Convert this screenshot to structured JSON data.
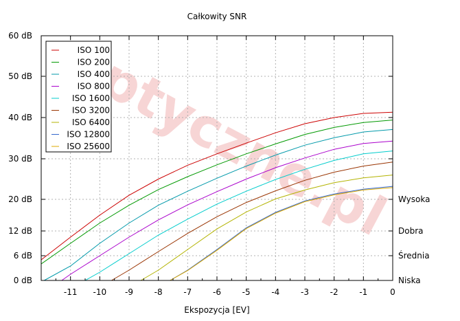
{
  "chart_data": {
    "type": "line",
    "title": "Całkowity SNR",
    "xlabel": "Ekspozycja [EV]",
    "ylabel": "",
    "xlim": [
      -12,
      0
    ],
    "ylim": [
      0,
      60
    ],
    "y_scale": "custom-nonlinear",
    "grid": true,
    "legend_position": "top-left",
    "watermark": "optyczne.pl",
    "x_ticks": [
      -11,
      -10,
      -9,
      -8,
      -7,
      -6,
      -5,
      -4,
      -3,
      -2,
      -1,
      0
    ],
    "x_tick_labels": [
      "-11",
      "-10",
      "-9",
      "-8",
      "-7",
      "-6",
      "-5",
      "-4",
      "-3",
      "-2",
      "-1",
      "0"
    ],
    "y_ticks": [
      0,
      6,
      12,
      20,
      30,
      40,
      50,
      60
    ],
    "y_tick_labels": [
      "0 dB",
      "6 dB",
      "12 dB",
      "20 dB",
      "30 dB",
      "40 dB",
      "50 dB",
      "60 dB"
    ],
    "right_labels": [
      {
        "label": "Wysoka",
        "y": 20
      },
      {
        "label": "Dobra",
        "y": 12
      },
      {
        "label": "Średnia",
        "y": 6
      },
      {
        "label": "Niska",
        "y": 0
      }
    ],
    "series": [
      {
        "name": "ISO 100",
        "color": "#cc0000",
        "x": [
          -12,
          -11,
          -10,
          -9,
          -8,
          -7,
          -6,
          -5,
          -4,
          -3,
          -2,
          -1,
          0
        ],
        "values": [
          5.0,
          10.5,
          16.0,
          21.0,
          25.0,
          28.4,
          31.2,
          33.8,
          36.3,
          38.5,
          40.0,
          41.0,
          41.3
        ]
      },
      {
        "name": "ISO 200",
        "color": "#009900",
        "x": [
          -12,
          -11,
          -10,
          -9,
          -8,
          -7,
          -6,
          -5,
          -4,
          -3,
          -2,
          -1,
          0
        ],
        "values": [
          4.0,
          9.0,
          14.0,
          18.5,
          22.4,
          25.6,
          28.5,
          31.2,
          33.6,
          35.9,
          37.6,
          38.8,
          39.4
        ]
      },
      {
        "name": "ISO 400",
        "color": "#0099aa",
        "x": [
          -11.9,
          -11,
          -10,
          -9,
          -8,
          -7,
          -6,
          -5,
          -4,
          -3,
          -2,
          -1,
          0
        ],
        "values": [
          0,
          3.5,
          9.0,
          14.0,
          18.5,
          22.0,
          25.2,
          28.2,
          30.9,
          33.3,
          35.1,
          36.5,
          37.1
        ]
      },
      {
        "name": "ISO 800",
        "color": "#aa00cc",
        "x": [
          -11.3,
          -11,
          -10,
          -9,
          -8,
          -7,
          -6,
          -5,
          -4,
          -3,
          -2,
          -1,
          0
        ],
        "values": [
          0,
          1.5,
          6.0,
          10.5,
          14.8,
          18.6,
          21.9,
          25.0,
          27.8,
          30.2,
          32.3,
          33.7,
          34.3
        ]
      },
      {
        "name": "ISO 1600",
        "color": "#00cccc",
        "x": [
          -10.5,
          -10,
          -9,
          -8,
          -7,
          -6,
          -5,
          -4,
          -3,
          -2,
          -1,
          0
        ],
        "values": [
          0,
          2.0,
          6.5,
          11.0,
          15.0,
          18.8,
          22.0,
          24.9,
          27.4,
          29.6,
          31.2,
          31.9
        ]
      },
      {
        "name": "ISO 3200",
        "color": "#993300",
        "x": [
          -9.6,
          -9,
          -8,
          -7,
          -6,
          -5,
          -4,
          -3,
          -2,
          -1,
          0
        ],
        "values": [
          0,
          2.5,
          7.0,
          11.4,
          15.6,
          19.2,
          22.1,
          24.7,
          26.7,
          28.2,
          29.2
        ]
      },
      {
        "name": "ISO 6400",
        "color": "#b3b300",
        "x": [
          -8.6,
          -8,
          -7,
          -6,
          -5,
          -4,
          -3,
          -2,
          -1,
          0
        ],
        "values": [
          0,
          2.5,
          7.5,
          12.5,
          16.8,
          20.1,
          22.3,
          24.1,
          25.3,
          26.0
        ]
      },
      {
        "name": "ISO 12800",
        "color": "#3366cc",
        "x": [
          -7.6,
          -7,
          -6,
          -5,
          -4,
          -3,
          -2,
          -1,
          0
        ],
        "values": [
          0,
          2.5,
          7.5,
          12.8,
          16.7,
          19.6,
          21.3,
          22.5,
          23.2
        ]
      },
      {
        "name": "ISO 25600",
        "color": "#ddaa00",
        "x": [
          -7.6,
          -7,
          -6,
          -5,
          -4,
          -3,
          -2,
          -1,
          0
        ],
        "values": [
          0,
          2.4,
          7.3,
          12.6,
          16.5,
          19.4,
          21.1,
          22.3,
          22.9
        ]
      }
    ]
  }
}
